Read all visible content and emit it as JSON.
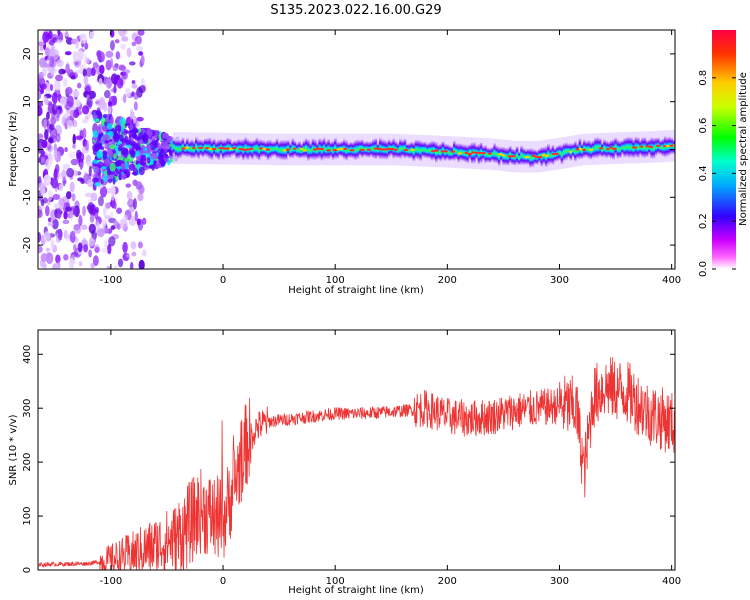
{
  "figure": {
    "title": "S135.2023.022.16.00.G29"
  },
  "chart_data": [
    {
      "type": "heatmap",
      "name": "spectrogram",
      "xlabel": "Height of straight line (km)",
      "ylabel": "Frequency (Hz)",
      "xlim": [
        -165,
        403
      ],
      "ylim": [
        -25,
        25
      ],
      "xticks": [
        -100,
        0,
        100,
        200,
        300,
        400
      ],
      "yticks": [
        -20,
        -10,
        0,
        10,
        20
      ],
      "colorbar": {
        "label": "Normalized spectral amplitude",
        "range": [
          0.0,
          1.0
        ],
        "ticks": [
          0.0,
          0.2,
          0.4,
          0.6,
          0.8
        ],
        "colors": [
          "#ffffff",
          "#ff00ff",
          "#0000ff",
          "#00ffff",
          "#00ff00",
          "#ffff00",
          "#ff0000"
        ]
      },
      "ridge": {
        "description_values": "dominant frequency line near 0 Hz",
        "x": [
          -40,
          0,
          50,
          100,
          150,
          200,
          240,
          260,
          280,
          300,
          320,
          350,
          380,
          400
        ],
        "freq": [
          0.3,
          0.2,
          0.0,
          0.0,
          0.0,
          -0.5,
          -1.0,
          -1.5,
          -1.5,
          -0.8,
          0.0,
          0.3,
          0.5,
          0.8
        ]
      }
    },
    {
      "type": "line",
      "name": "snr",
      "xlabel": "Height of straight line (km)",
      "ylabel": "SNR (10 * v/v)",
      "xlim": [
        -165,
        403
      ],
      "ylim": [
        0,
        445
      ],
      "xticks": [
        -100,
        0,
        100,
        200,
        300,
        400
      ],
      "yticks": [
        0,
        100,
        200,
        300,
        400
      ],
      "color": "#ee3333",
      "series": [
        {
          "x": [
            -165,
            -120,
            -100,
            -80,
            -60,
            -40,
            -20,
            0,
            10,
            20,
            30,
            40,
            60,
            80,
            100,
            120,
            140,
            160,
            180,
            200,
            220,
            240,
            260,
            280,
            300,
            315,
            322,
            330,
            340,
            360,
            380,
            403
          ],
          "values": [
            10,
            12,
            18,
            30,
            45,
            60,
            110,
            90,
            160,
            230,
            265,
            275,
            280,
            285,
            290,
            290,
            292,
            295,
            300,
            285,
            280,
            285,
            295,
            300,
            305,
            300,
            180,
            320,
            340,
            330,
            290,
            270
          ]
        }
      ]
    }
  ]
}
